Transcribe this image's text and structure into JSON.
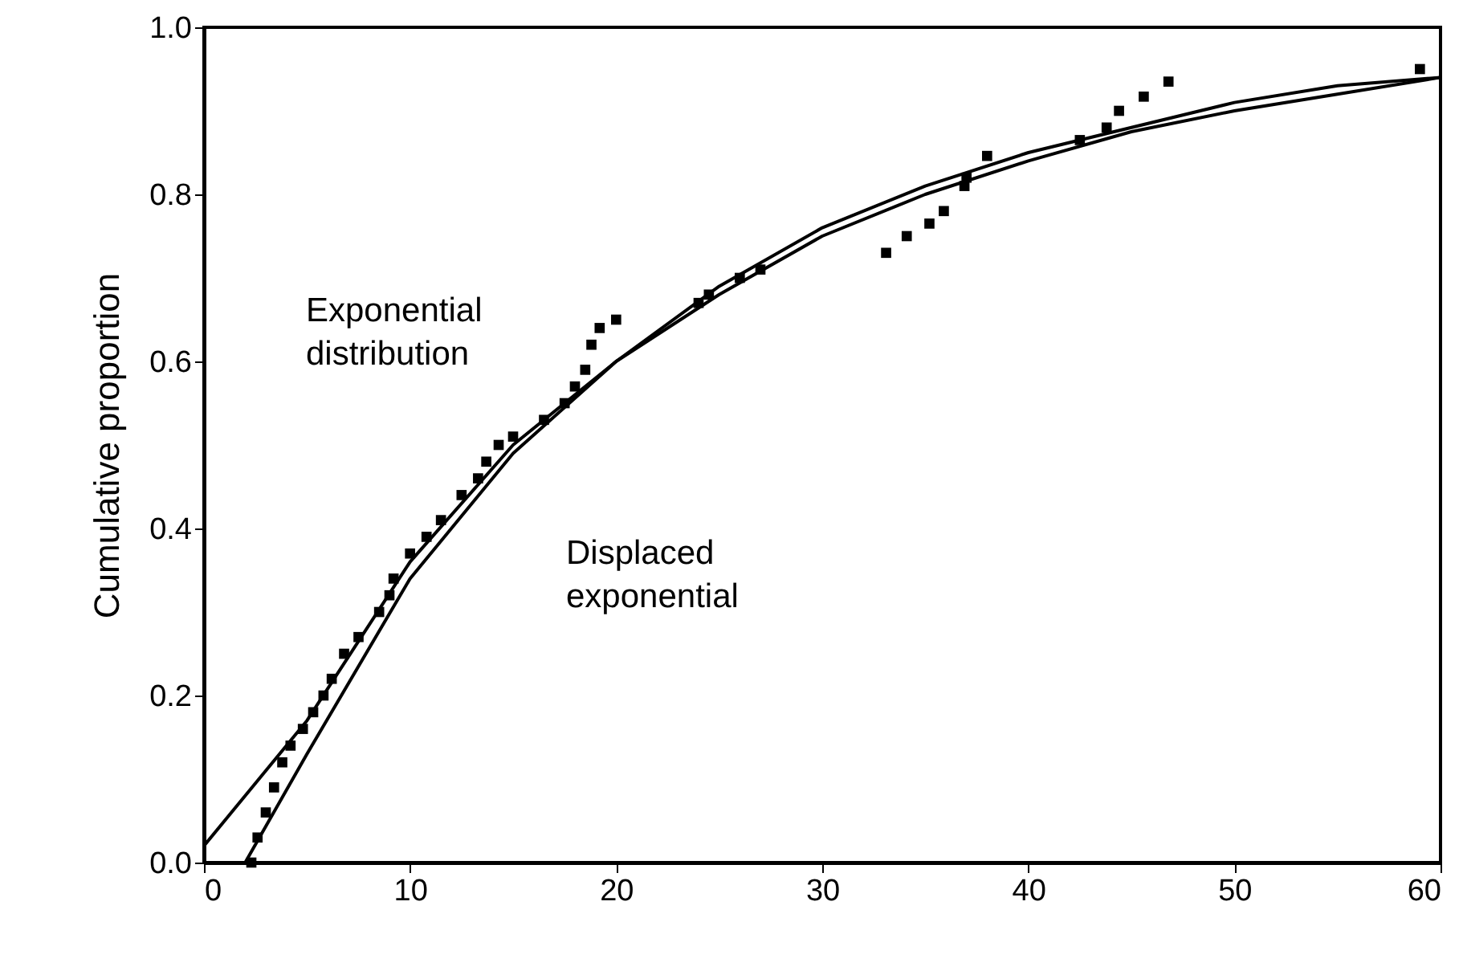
{
  "chart_data": {
    "type": "scatter",
    "ylabel": "Cumulative proportion",
    "xlim": [
      0,
      60
    ],
    "xticks": [
      0,
      10,
      20,
      30,
      40,
      50,
      60
    ],
    "ylim": [
      0,
      1
    ],
    "yticks": [
      {
        "value": 0,
        "label": "0.0"
      },
      {
        "value": 0.2,
        "label": "0.2"
      },
      {
        "value": 0.4,
        "label": "0.4"
      },
      {
        "value": 0.6,
        "label": "0.6"
      },
      {
        "value": 0.8,
        "label": "0.8"
      },
      {
        "value": 1,
        "label": "1.0"
      }
    ],
    "grid": false,
    "series": [
      {
        "marker": "square",
        "color": "#000000",
        "x": [
          2.3,
          2.6,
          3,
          3.4,
          3.8,
          4.2,
          4.8,
          5.3,
          5.8,
          6.2,
          6.8,
          7.5,
          8.5,
          9,
          9.2,
          10,
          10.8,
          11.5,
          12.5,
          13.3,
          13.7,
          14.3,
          15,
          16.5,
          17.5,
          18,
          18.5,
          18.8,
          19.2,
          20,
          24,
          24.5,
          26,
          27,
          33.1,
          34.1,
          35.2,
          35.9,
          36.9,
          37,
          38,
          42.5,
          43.8,
          44.4,
          45.6,
          46.8,
          59
        ],
        "values": [
          0,
          0.03,
          0.06,
          0.09,
          0.12,
          0.14,
          0.16,
          0.18,
          0.2,
          0.22,
          0.25,
          0.27,
          0.3,
          0.32,
          0.34,
          0.37,
          0.39,
          0.41,
          0.44,
          0.46,
          0.48,
          0.5,
          0.51,
          0.53,
          0.55,
          0.57,
          0.59,
          0.62,
          0.64,
          0.65,
          0.67,
          0.68,
          0.7,
          0.71,
          0.73,
          0.75,
          0.765,
          0.78,
          0.81,
          0.82,
          0.846,
          0.865,
          0.88,
          0.9,
          0.917,
          0.935,
          0.95
        ]
      },
      {
        "type": "line",
        "name": "Exponential distribution",
        "color": "#000000",
        "x": [
          0,
          5,
          10,
          15,
          20,
          25,
          30,
          35,
          40,
          45,
          50,
          55,
          60
        ],
        "values": [
          0.02,
          0.17,
          0.36,
          0.5,
          0.6,
          0.69,
          0.76,
          0.81,
          0.85,
          0.88,
          0.91,
          0.93,
          0.94
        ]
      },
      {
        "type": "line",
        "name": "Displaced exponential",
        "color": "#000000",
        "x": [
          2,
          5,
          10,
          15,
          20,
          25,
          30,
          35,
          40,
          45,
          50,
          55,
          60
        ],
        "values": [
          0,
          0.13,
          0.34,
          0.49,
          0.6,
          0.68,
          0.75,
          0.8,
          0.84,
          0.875,
          0.9,
          0.92,
          0.94
        ]
      }
    ]
  }
}
